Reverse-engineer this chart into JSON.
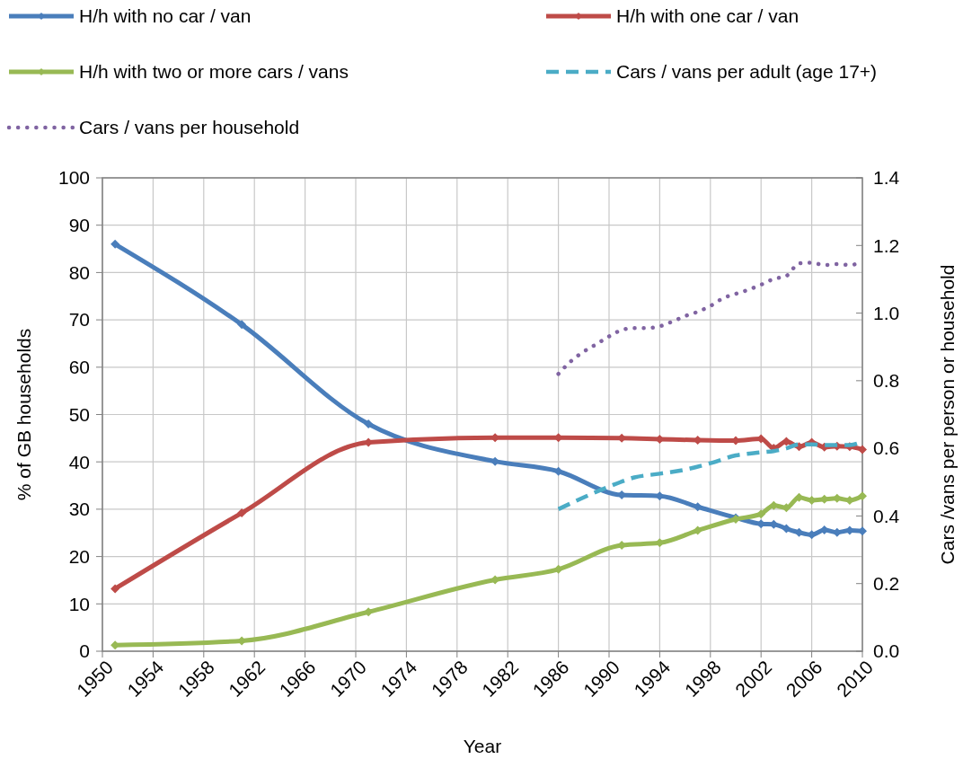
{
  "chart_data": {
    "type": "line",
    "xlabel": "Year",
    "ylabel": "% of GB households",
    "y2label": "Cars /vans per person or household",
    "xlim": [
      1950,
      2010
    ],
    "xticks": [
      1950,
      1954,
      1958,
      1962,
      1966,
      1970,
      1974,
      1978,
      1982,
      1986,
      1990,
      1994,
      1998,
      2002,
      2006,
      2010
    ],
    "ylim": [
      0,
      100
    ],
    "yticks": [
      0,
      10,
      20,
      30,
      40,
      50,
      60,
      70,
      80,
      90,
      100
    ],
    "y2lim": [
      0,
      1.4
    ],
    "y2ticks": [
      {
        "value": 0,
        "label": "0.0"
      },
      {
        "value": 0.2,
        "label": "0.2"
      },
      {
        "value": 0.4,
        "label": "0.4"
      },
      {
        "value": 0.6,
        "label": "0.6"
      },
      {
        "value": 0.8,
        "label": "0.8"
      },
      {
        "value": 1,
        "label": "1.0"
      },
      {
        "value": 1.2,
        "label": "1.2"
      },
      {
        "value": 1.4,
        "label": "1.4"
      }
    ],
    "grid": true,
    "legend": "top",
    "series": [
      {
        "name": "H/h with no car / van",
        "color": "#4a7ebb",
        "marker": "diamond",
        "line_style": "solid",
        "x": [
          1951,
          1961,
          1971,
          1981,
          1986,
          1991,
          1994,
          1997,
          2000,
          2002,
          2003,
          2004,
          2005,
          2006,
          2007,
          2008,
          2009,
          2010
        ],
        "values": [
          86,
          69,
          48,
          40.1,
          38,
          33,
          32.8,
          30.5,
          28.2,
          26.9,
          26.8,
          25.9,
          25.1,
          24.6,
          25.6,
          25.1,
          25.5,
          25.4
        ]
      },
      {
        "name": "H/h with one car / van",
        "color": "#be4b48",
        "marker": "diamond",
        "line_style": "solid",
        "x": [
          1951,
          1961,
          1971,
          1981,
          1986,
          1991,
          1994,
          1997,
          2000,
          2002,
          2003,
          2004,
          2005,
          2006,
          2007,
          2008,
          2009,
          2010
        ],
        "values": [
          13.2,
          29.2,
          44.1,
          45.1,
          45.1,
          45,
          44.8,
          44.6,
          44.5,
          44.9,
          42.9,
          44.3,
          43.2,
          44.1,
          43.1,
          43.3,
          43.2,
          42.6
        ]
      },
      {
        "name": "H/h with two or more cars / vans",
        "color": "#98b954",
        "marker": "diamond",
        "line_style": "solid",
        "x": [
          1951,
          1961,
          1971,
          1981,
          1986,
          1991,
          1994,
          1997,
          2000,
          2002,
          2003,
          2004,
          2005,
          2006,
          2007,
          2008,
          2009,
          2010
        ],
        "values": [
          1.3,
          2.2,
          8.3,
          15.1,
          17.3,
          22.4,
          22.9,
          25.5,
          27.9,
          29,
          30.8,
          30.3,
          32.5,
          31.9,
          32.1,
          32.3,
          31.9,
          32.8
        ]
      },
      {
        "name": "Cars / vans per adult (age 17+)",
        "color": "#4bacc6",
        "marker": "none",
        "line_style": "dashed",
        "axis": "y2",
        "x": [
          1986,
          1988,
          1990,
          1992,
          1994,
          1996,
          1998,
          2000,
          2002,
          2003,
          2004,
          2005,
          2006,
          2007,
          2008,
          2009,
          2010
        ],
        "values": [
          0.42,
          0.455,
          0.487,
          0.514,
          0.525,
          0.537,
          0.556,
          0.579,
          0.588,
          0.592,
          0.6,
          0.612,
          0.612,
          0.61,
          0.61,
          0.61,
          0.62
        ]
      },
      {
        "name": "Cars / vans per household",
        "color": "#8064a2",
        "marker": "none",
        "line_style": "dotted",
        "axis": "y2",
        "x": [
          1986,
          1987,
          1988,
          1989,
          1990,
          1991,
          1992,
          1993,
          1994,
          1995,
          1996,
          1997,
          1998,
          1999,
          2000,
          2001,
          2002,
          2003,
          2004,
          2005,
          2006,
          2007,
          2008,
          2009,
          2010
        ],
        "values": [
          0.82,
          0.858,
          0.886,
          0.908,
          0.931,
          0.95,
          0.956,
          0.956,
          0.961,
          0.975,
          0.991,
          1.004,
          1.021,
          1.044,
          1.057,
          1.069,
          1.084,
          1.101,
          1.11,
          1.147,
          1.149,
          1.142,
          1.145,
          1.142,
          1.153
        ]
      }
    ]
  }
}
